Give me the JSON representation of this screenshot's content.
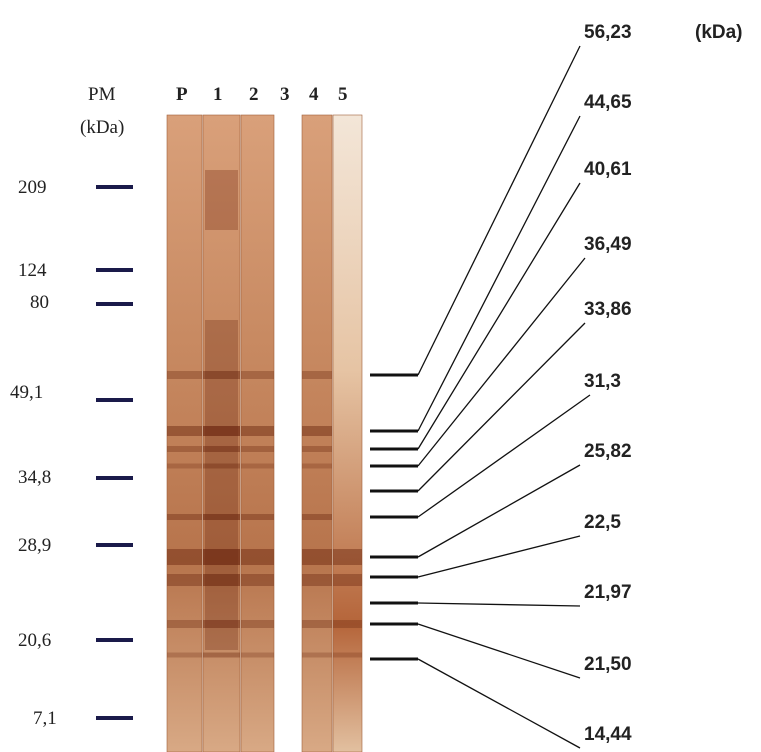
{
  "marker": {
    "title": "PM",
    "unit": "(kDa)",
    "labels": [
      "209",
      "124",
      "80",
      "49,1",
      "34,8",
      "28,9",
      "20,6",
      "7,1"
    ]
  },
  "lanes": [
    "P",
    "1",
    "2",
    "3",
    "4",
    "5"
  ],
  "bands": {
    "labels": [
      "56,23",
      "44,65",
      "40,61",
      "36,49",
      "33,86",
      "31,3",
      "25,82",
      "22,5",
      "21,97",
      "21,50",
      "14,44"
    ],
    "unit": "(kDa)"
  }
}
